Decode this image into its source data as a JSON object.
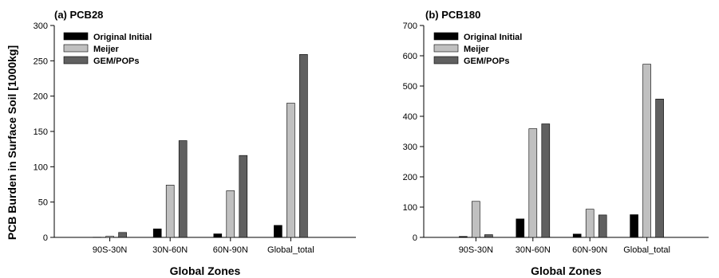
{
  "chart_data": [
    {
      "type": "bar",
      "title": "(a) PCB28",
      "xlabel": "Global Zones",
      "ylabel": "PCB Burden in Surface Soil [1000kg]",
      "ylim": [
        0,
        300
      ],
      "yticks": [
        0,
        50,
        100,
        150,
        200,
        250,
        300
      ],
      "categories": [
        "90S-30N",
        "30N-60N",
        "60N-90N",
        "Global_total"
      ],
      "series": [
        {
          "name": "Original Initial",
          "color": "#000000",
          "values": [
            0.3,
            12,
            5,
            17
          ]
        },
        {
          "name": "Meijer",
          "color": "#c0c0c0",
          "values": [
            1.5,
            74,
            66,
            190
          ]
        },
        {
          "name": "GEM/POPs",
          "color": "#606060",
          "values": [
            7,
            137,
            116,
            259
          ]
        }
      ],
      "legend_position": "top-left",
      "grid": false
    },
    {
      "type": "bar",
      "title": "(b) PCB180",
      "xlabel": "Global Zones",
      "ylabel": "",
      "ylim": [
        0,
        700
      ],
      "yticks": [
        0,
        100,
        200,
        300,
        400,
        500,
        600,
        700
      ],
      "categories": [
        "90S-30N",
        "30N-60N",
        "60N-90N",
        "Global_total"
      ],
      "series": [
        {
          "name": "Original Initial",
          "color": "#000000",
          "values": [
            3,
            61,
            11,
            75
          ]
        },
        {
          "name": "Meijer",
          "color": "#c0c0c0",
          "values": [
            119,
            359,
            93,
            572
          ]
        },
        {
          "name": "GEM/POPs",
          "color": "#606060",
          "values": [
            9,
            375,
            74,
            457
          ]
        }
      ],
      "legend_position": "top-left",
      "grid": false
    }
  ]
}
